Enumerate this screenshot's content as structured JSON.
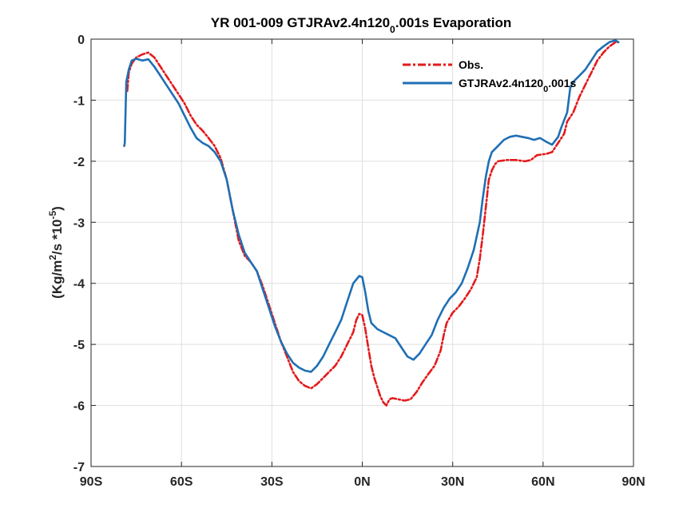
{
  "chart_data": {
    "type": "line",
    "title_main": "YR 001-009 GTJRAv2.4n120",
    "title_sub": "0",
    "title_tail": ".001s Evaporation",
    "ylabel_pre": "(Kg/m",
    "ylabel_sup1": "2",
    "ylabel_mid": "/s *10",
    "ylabel_sup2": "-5",
    "ylabel_post": ")",
    "xlim": [
      -90,
      90
    ],
    "ylim": [
      -7,
      0
    ],
    "xticks": [
      -90,
      -60,
      -30,
      0,
      30,
      60,
      90
    ],
    "xtick_labels": [
      "90S",
      "60S",
      "30S",
      "0N",
      "30N",
      "60N",
      "90N"
    ],
    "yticks": [
      -7,
      -6,
      -5,
      -4,
      -3,
      -2,
      -1,
      0
    ],
    "ytick_labels": [
      "-7",
      "-6",
      "-5",
      "-4",
      "-3",
      "-2",
      "-1",
      "0"
    ],
    "grid": true,
    "legend_position": "top-right",
    "series": [
      {
        "name": "Obs.",
        "color": "#e41a1c",
        "style": "dashdot",
        "points": [
          [
            -78,
            -0.85
          ],
          [
            -77.5,
            -0.55
          ],
          [
            -76.5,
            -0.4
          ],
          [
            -75,
            -0.3
          ],
          [
            -73,
            -0.25
          ],
          [
            -71,
            -0.22
          ],
          [
            -69,
            -0.3
          ],
          [
            -67,
            -0.45
          ],
          [
            -65,
            -0.6
          ],
          [
            -63,
            -0.75
          ],
          [
            -61,
            -0.9
          ],
          [
            -59,
            -1.05
          ],
          [
            -57,
            -1.25
          ],
          [
            -55,
            -1.4
          ],
          [
            -53,
            -1.5
          ],
          [
            -51,
            -1.62
          ],
          [
            -49,
            -1.75
          ],
          [
            -47,
            -1.95
          ],
          [
            -45,
            -2.3
          ],
          [
            -43,
            -2.8
          ],
          [
            -41,
            -3.3
          ],
          [
            -39,
            -3.55
          ],
          [
            -37,
            -3.65
          ],
          [
            -35,
            -3.8
          ],
          [
            -33,
            -4.05
          ],
          [
            -31,
            -4.35
          ],
          [
            -29,
            -4.65
          ],
          [
            -27,
            -4.95
          ],
          [
            -25,
            -5.2
          ],
          [
            -23,
            -5.45
          ],
          [
            -21,
            -5.6
          ],
          [
            -19,
            -5.68
          ],
          [
            -17,
            -5.72
          ],
          [
            -15,
            -5.65
          ],
          [
            -13,
            -5.55
          ],
          [
            -11,
            -5.45
          ],
          [
            -9,
            -5.35
          ],
          [
            -7,
            -5.2
          ],
          [
            -5,
            -5.0
          ],
          [
            -3,
            -4.8
          ],
          [
            -2,
            -4.6
          ],
          [
            -1,
            -4.5
          ],
          [
            0,
            -4.52
          ],
          [
            1,
            -4.75
          ],
          [
            2,
            -5.05
          ],
          [
            3,
            -5.35
          ],
          [
            4,
            -5.55
          ],
          [
            5,
            -5.7
          ],
          [
            6,
            -5.85
          ],
          [
            7,
            -5.95
          ],
          [
            8,
            -6.0
          ],
          [
            9,
            -5.9
          ],
          [
            10,
            -5.88
          ],
          [
            12,
            -5.9
          ],
          [
            14,
            -5.92
          ],
          [
            16,
            -5.9
          ],
          [
            18,
            -5.78
          ],
          [
            20,
            -5.62
          ],
          [
            22,
            -5.48
          ],
          [
            24,
            -5.35
          ],
          [
            26,
            -5.1
          ],
          [
            27,
            -4.85
          ],
          [
            28,
            -4.65
          ],
          [
            30,
            -4.48
          ],
          [
            32,
            -4.38
          ],
          [
            34,
            -4.25
          ],
          [
            36,
            -4.1
          ],
          [
            38,
            -3.9
          ],
          [
            39,
            -3.6
          ],
          [
            40,
            -3.2
          ],
          [
            41,
            -2.75
          ],
          [
            42,
            -2.3
          ],
          [
            43,
            -2.15
          ],
          [
            44,
            -2.05
          ],
          [
            45,
            -2.0
          ],
          [
            48,
            -1.98
          ],
          [
            51,
            -1.98
          ],
          [
            54,
            -2.0
          ],
          [
            56,
            -1.98
          ],
          [
            58,
            -1.9
          ],
          [
            61,
            -1.88
          ],
          [
            63,
            -1.85
          ],
          [
            65,
            -1.7
          ],
          [
            67,
            -1.55
          ],
          [
            68,
            -1.35
          ],
          [
            70,
            -1.2
          ],
          [
            72,
            -0.95
          ],
          [
            74,
            -0.75
          ],
          [
            76,
            -0.55
          ],
          [
            78,
            -0.35
          ],
          [
            80,
            -0.22
          ],
          [
            82,
            -0.12
          ],
          [
            84,
            -0.05
          ],
          [
            85,
            -0.05
          ]
        ]
      },
      {
        "name": "GTJRAv2.4n120",
        "name_sub": "0",
        "name_tail": ".001s",
        "color": "#1f6fb4",
        "style": "solid",
        "points": [
          [
            -79,
            -1.75
          ],
          [
            -78.8,
            -1.7
          ],
          [
            -78.3,
            -0.7
          ],
          [
            -77.5,
            -0.5
          ],
          [
            -76.5,
            -0.35
          ],
          [
            -75,
            -0.32
          ],
          [
            -73,
            -0.35
          ],
          [
            -71,
            -0.33
          ],
          [
            -69,
            -0.45
          ],
          [
            -67,
            -0.6
          ],
          [
            -65,
            -0.75
          ],
          [
            -63,
            -0.9
          ],
          [
            -61,
            -1.05
          ],
          [
            -59,
            -1.25
          ],
          [
            -57,
            -1.45
          ],
          [
            -55,
            -1.62
          ],
          [
            -53,
            -1.7
          ],
          [
            -51,
            -1.75
          ],
          [
            -49,
            -1.85
          ],
          [
            -47,
            -2.0
          ],
          [
            -45,
            -2.3
          ],
          [
            -43,
            -2.8
          ],
          [
            -41,
            -3.2
          ],
          [
            -39,
            -3.5
          ],
          [
            -37,
            -3.65
          ],
          [
            -35,
            -3.8
          ],
          [
            -33,
            -4.1
          ],
          [
            -31,
            -4.4
          ],
          [
            -29,
            -4.7
          ],
          [
            -27,
            -4.95
          ],
          [
            -25,
            -5.15
          ],
          [
            -23,
            -5.3
          ],
          [
            -21,
            -5.38
          ],
          [
            -19,
            -5.43
          ],
          [
            -17,
            -5.45
          ],
          [
            -15,
            -5.35
          ],
          [
            -13,
            -5.2
          ],
          [
            -11,
            -5.0
          ],
          [
            -9,
            -4.8
          ],
          [
            -7,
            -4.6
          ],
          [
            -5,
            -4.3
          ],
          [
            -3,
            -4.0
          ],
          [
            -1,
            -3.88
          ],
          [
            0,
            -3.9
          ],
          [
            1,
            -4.15
          ],
          [
            2,
            -4.45
          ],
          [
            3,
            -4.65
          ],
          [
            5,
            -4.75
          ],
          [
            7,
            -4.8
          ],
          [
            9,
            -4.85
          ],
          [
            11,
            -4.9
          ],
          [
            13,
            -5.05
          ],
          [
            15,
            -5.2
          ],
          [
            17,
            -5.25
          ],
          [
            19,
            -5.15
          ],
          [
            21,
            -5.0
          ],
          [
            23,
            -4.85
          ],
          [
            25,
            -4.6
          ],
          [
            27,
            -4.4
          ],
          [
            29,
            -4.25
          ],
          [
            31,
            -4.15
          ],
          [
            33,
            -4.0
          ],
          [
            35,
            -3.75
          ],
          [
            37,
            -3.45
          ],
          [
            39,
            -3.0
          ],
          [
            40,
            -2.6
          ],
          [
            41,
            -2.25
          ],
          [
            42,
            -2.0
          ],
          [
            43,
            -1.85
          ],
          [
            45,
            -1.75
          ],
          [
            47,
            -1.65
          ],
          [
            49,
            -1.6
          ],
          [
            51,
            -1.58
          ],
          [
            53,
            -1.6
          ],
          [
            55,
            -1.62
          ],
          [
            57,
            -1.65
          ],
          [
            59,
            -1.62
          ],
          [
            61,
            -1.68
          ],
          [
            63,
            -1.73
          ],
          [
            65,
            -1.6
          ],
          [
            66,
            -1.45
          ],
          [
            68,
            -1.2
          ],
          [
            69,
            -0.8
          ],
          [
            70,
            -0.7
          ],
          [
            72,
            -0.6
          ],
          [
            74,
            -0.5
          ],
          [
            76,
            -0.35
          ],
          [
            78,
            -0.2
          ],
          [
            80,
            -0.12
          ],
          [
            82,
            -0.05
          ],
          [
            84,
            -0.02
          ],
          [
            85,
            -0.05
          ]
        ]
      }
    ]
  }
}
